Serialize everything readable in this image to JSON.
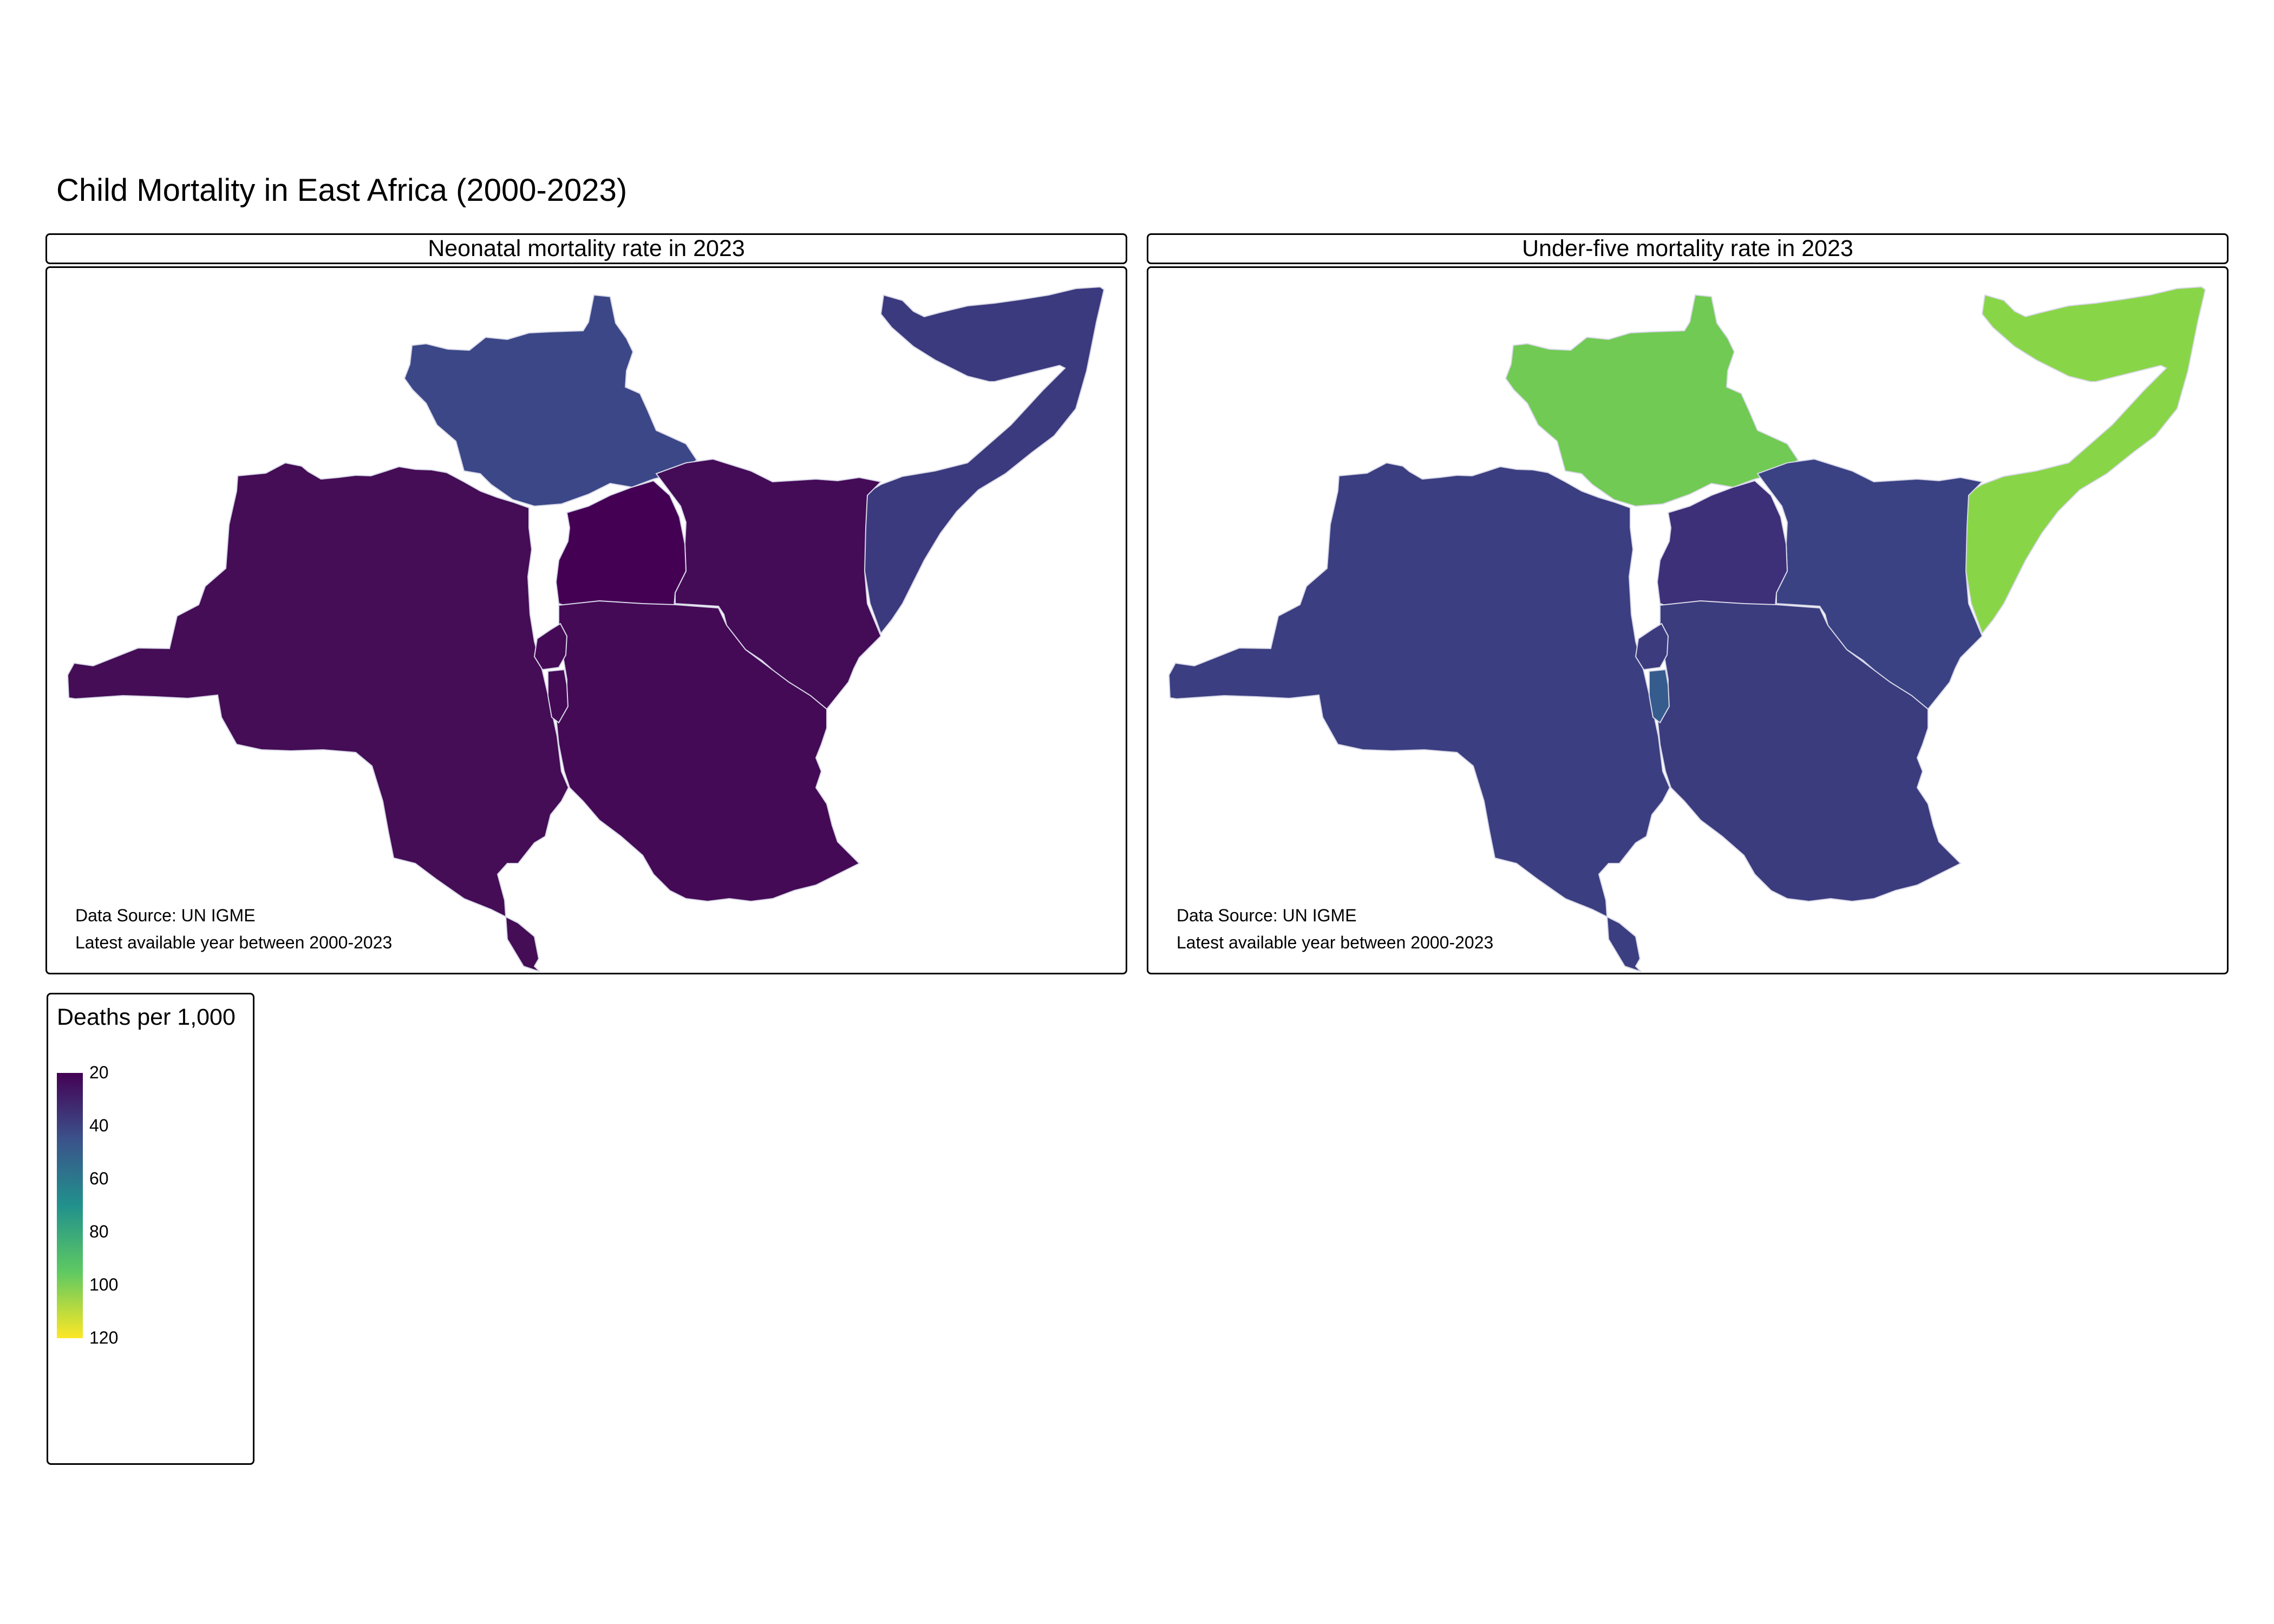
{
  "title": "Child Mortality in East Africa (2000-2023)",
  "panels": [
    {
      "label": "Neonatal mortality rate in 2023",
      "source": "Data Source: UN IGME",
      "note": "Latest available year between 2000-2023",
      "colors": {
        "south_sudan": "#3b4787",
        "somalia": "#3b3a7e",
        "drc": "#440d55",
        "uganda": "#440154",
        "kenya": "#440b57",
        "tanzania": "#440a56",
        "rwanda": "#440a56",
        "burundi": "#440a56"
      }
    },
    {
      "label": "Under-five mortality rate in 2023",
      "source": "Data Source: UN IGME",
      "note": "Latest available year between 2000-2023",
      "colors": {
        "south_sudan": "#71ca53",
        "somalia": "#89d548",
        "drc": "#3b3e80",
        "uganda": "#3d2f78",
        "kenya": "#3a4284",
        "tanzania": "#3b3c7e",
        "rwanda": "#3c3b7e",
        "burundi": "#355c8c"
      }
    }
  ],
  "legend": {
    "title": "Deaths per 1,000",
    "min": 20,
    "max": 120,
    "ticks": [
      "20",
      "40",
      "60",
      "80",
      "100",
      "120"
    ],
    "gradient": [
      "#440154",
      "#3b528b",
      "#21918c",
      "#5ec962",
      "#fde725"
    ]
  }
}
